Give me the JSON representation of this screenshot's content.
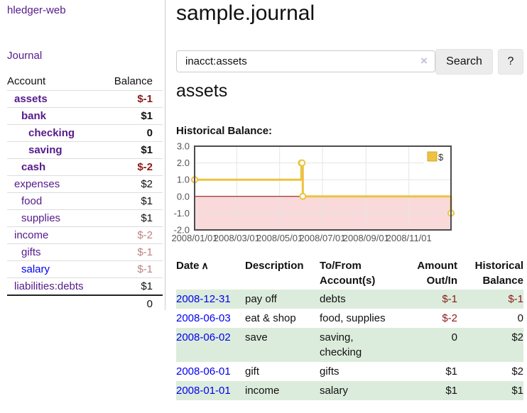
{
  "sidebar": {
    "app_title": "hledger-web",
    "nav_journal": "Journal",
    "accounts": {
      "header_account": "Account",
      "header_balance": "Balance",
      "rows": [
        {
          "label": "assets",
          "balance": "$-1",
          "indent": 0,
          "bold": true,
          "link": "purple",
          "balance_tone": "negative-strong"
        },
        {
          "label": "bank",
          "balance": "$1",
          "indent": 1,
          "bold": true,
          "link": "purple",
          "balance_tone": "normal"
        },
        {
          "label": "checking",
          "balance": "0",
          "indent": 2,
          "bold": true,
          "link": "purple",
          "balance_tone": "normal"
        },
        {
          "label": "saving",
          "balance": "$1",
          "indent": 2,
          "bold": true,
          "link": "purple",
          "balance_tone": "normal"
        },
        {
          "label": "cash",
          "balance": "$-2",
          "indent": 1,
          "bold": true,
          "link": "purple",
          "balance_tone": "negative-strong"
        },
        {
          "label": "expenses",
          "balance": "$2",
          "indent": 0,
          "bold": false,
          "link": "purple",
          "balance_tone": "normal"
        },
        {
          "label": "food",
          "balance": "$1",
          "indent": 1,
          "bold": false,
          "link": "purple",
          "balance_tone": "normal"
        },
        {
          "label": "supplies",
          "balance": "$1",
          "indent": 1,
          "bold": false,
          "link": "purple",
          "balance_tone": "normal"
        },
        {
          "label": "income",
          "balance": "$-2",
          "indent": 0,
          "bold": false,
          "link": "purple",
          "balance_tone": "negative-muted"
        },
        {
          "label": "gifts",
          "balance": "$-1",
          "indent": 1,
          "bold": false,
          "link": "purple",
          "balance_tone": "negative-muted"
        },
        {
          "label": "salary",
          "balance": "$-1",
          "indent": 1,
          "bold": false,
          "link": "blue",
          "balance_tone": "negative-muted"
        },
        {
          "label": "liabilities:debts",
          "balance": "$1",
          "indent": 0,
          "bold": false,
          "link": "purple",
          "balance_tone": "normal"
        }
      ],
      "total": "0"
    }
  },
  "header": {
    "title": "sample.journal"
  },
  "search": {
    "value": "inacct:assets",
    "clear_icon": "×",
    "button_label": "Search",
    "help_label": "?"
  },
  "account_page": {
    "heading": "assets",
    "chart_label": "Historical Balance:"
  },
  "chart_data": {
    "type": "line",
    "style": "step",
    "title": "Historical Balance:",
    "series": [
      {
        "name": "$",
        "color": "#edc240",
        "points": [
          [
            "2008-01-01",
            1
          ],
          [
            "2008-06-01",
            2
          ],
          [
            "2008-06-02",
            2
          ],
          [
            "2008-06-03",
            0
          ],
          [
            "2008-12-31",
            -1
          ]
        ]
      }
    ],
    "xlim": [
      "2008-01-01",
      "2008-12-31"
    ],
    "ylim": [
      -2,
      3
    ],
    "x_tick_labels": [
      "2008/01/01",
      "2008/03/01",
      "2008/05/01",
      "2008/07/01",
      "2008/09/01",
      "2008/11/01"
    ],
    "y_tick_labels": [
      "3.0",
      "2.0",
      "1.0",
      "0.0",
      "-1.0",
      "-2.0"
    ],
    "grid": true,
    "legend_position": "top-right",
    "marker": "open-circle",
    "negative_region_color": "#f9d9d9",
    "zero_line_color": "#8b0000",
    "grid_line_color": "#e5e5e5",
    "border_color": "#4d4d4d",
    "tick_label_color": "#545454"
  },
  "register": {
    "columns": [
      {
        "label": "Date"
      },
      {
        "label": "Description"
      },
      {
        "label": "To/From Account(s)"
      },
      {
        "label": "Amount Out/In"
      },
      {
        "label": "Historical Balance"
      }
    ],
    "sort_indicator": "∧",
    "rows": [
      {
        "date": "2008-12-31",
        "description": "pay off",
        "accounts": "debts",
        "amount": "$-1",
        "amount_negative": true,
        "balance": "$-1",
        "balance_negative": true
      },
      {
        "date": "2008-06-03",
        "description": "eat & shop",
        "accounts": "food, supplies",
        "amount": "$-2",
        "amount_negative": true,
        "balance": "0",
        "balance_negative": false
      },
      {
        "date": "2008-06-02",
        "description": "save",
        "accounts": "saving, checking",
        "amount": "0",
        "amount_negative": false,
        "balance": "$2",
        "balance_negative": false
      },
      {
        "date": "2008-06-01",
        "description": "gift",
        "accounts": "gifts",
        "amount": "$1",
        "amount_negative": false,
        "balance": "$2",
        "balance_negative": false
      },
      {
        "date": "2008-01-01",
        "description": "income",
        "accounts": "salary",
        "amount": "$1",
        "amount_negative": false,
        "balance": "$1",
        "balance_negative": false
      }
    ]
  },
  "colors": {
    "link_purple": "#551a8b",
    "link_blue": "#0000ee",
    "negative_strong": "#8b1a1a",
    "negative_muted": "#bd8282",
    "row_shade_green": "#dcecdc",
    "button_bg": "#ececec",
    "chart_series_gold": "#edc240"
  }
}
